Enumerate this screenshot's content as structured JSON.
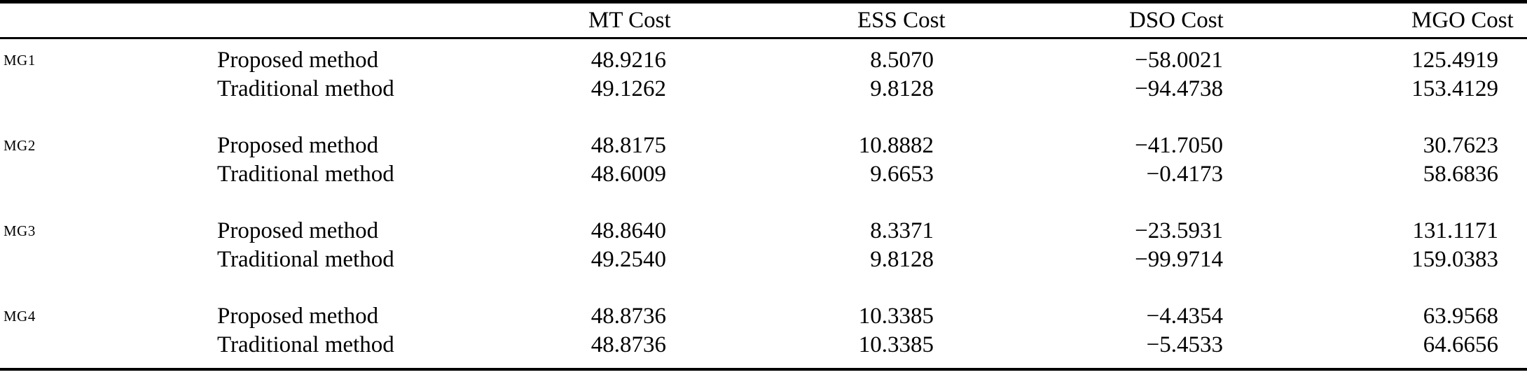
{
  "table": {
    "columns": {
      "mg": "",
      "method": "",
      "mt": "MT Cost",
      "ess": "ESS Cost",
      "dso": "DSO Cost",
      "mgo": "MGO Cost"
    },
    "groups": [
      {
        "label": "MG1",
        "rows": [
          {
            "method": "Proposed method",
            "values": [
              "48.9216",
              "8.5070",
              "−58.0021",
              "125.4919"
            ]
          },
          {
            "method": "Traditional method",
            "values": [
              "49.1262",
              "9.8128",
              "−94.4738",
              "153.4129"
            ]
          }
        ]
      },
      {
        "label": "MG2",
        "rows": [
          {
            "method": "Proposed method",
            "values": [
              "48.8175",
              "10.8882",
              "−41.7050",
              "30.7623"
            ]
          },
          {
            "method": "Traditional method",
            "values": [
              "48.6009",
              "9.6653",
              "−0.4173",
              "58.6836"
            ]
          }
        ]
      },
      {
        "label": "MG3",
        "rows": [
          {
            "method": "Proposed method",
            "values": [
              "48.8640",
              "8.3371",
              "−23.5931",
              "131.1171"
            ]
          },
          {
            "method": "Traditional method",
            "values": [
              "49.2540",
              "9.8128",
              "−99.9714",
              "159.0383"
            ]
          }
        ]
      },
      {
        "label": "MG4",
        "rows": [
          {
            "method": "Proposed method",
            "values": [
              "48.8736",
              "10.3385",
              "−4.4354",
              "63.9568"
            ]
          },
          {
            "method": "Traditional method",
            "values": [
              "48.8736",
              "10.3385",
              "−5.4533",
              "64.6656"
            ]
          }
        ]
      }
    ],
    "colors": {
      "text": "#000000",
      "background": "#ffffff",
      "rule": "#000000"
    }
  },
  "chart_data": {
    "type": "table",
    "title": "",
    "columns": [
      "",
      "",
      "MT Cost",
      "ESS Cost",
      "DSO Cost",
      "MGO Cost"
    ],
    "rows": [
      [
        "MG1",
        "Proposed method",
        48.9216,
        8.507,
        -58.0021,
        125.4919
      ],
      [
        "MG1",
        "Traditional method",
        49.1262,
        9.8128,
        -94.4738,
        153.4129
      ],
      [
        "MG2",
        "Proposed method",
        48.8175,
        10.8882,
        -41.705,
        30.7623
      ],
      [
        "MG2",
        "Traditional method",
        48.6009,
        9.6653,
        -0.4173,
        58.6836
      ],
      [
        "MG3",
        "Proposed method",
        48.864,
        8.3371,
        -23.5931,
        131.1171
      ],
      [
        "MG3",
        "Traditional method",
        49.254,
        9.8128,
        -99.9714,
        159.0383
      ],
      [
        "MG4",
        "Proposed method",
        48.8736,
        10.3385,
        -4.4354,
        63.9568
      ],
      [
        "MG4",
        "Traditional method",
        48.8736,
        10.3385,
        -5.4533,
        64.6656
      ]
    ]
  }
}
